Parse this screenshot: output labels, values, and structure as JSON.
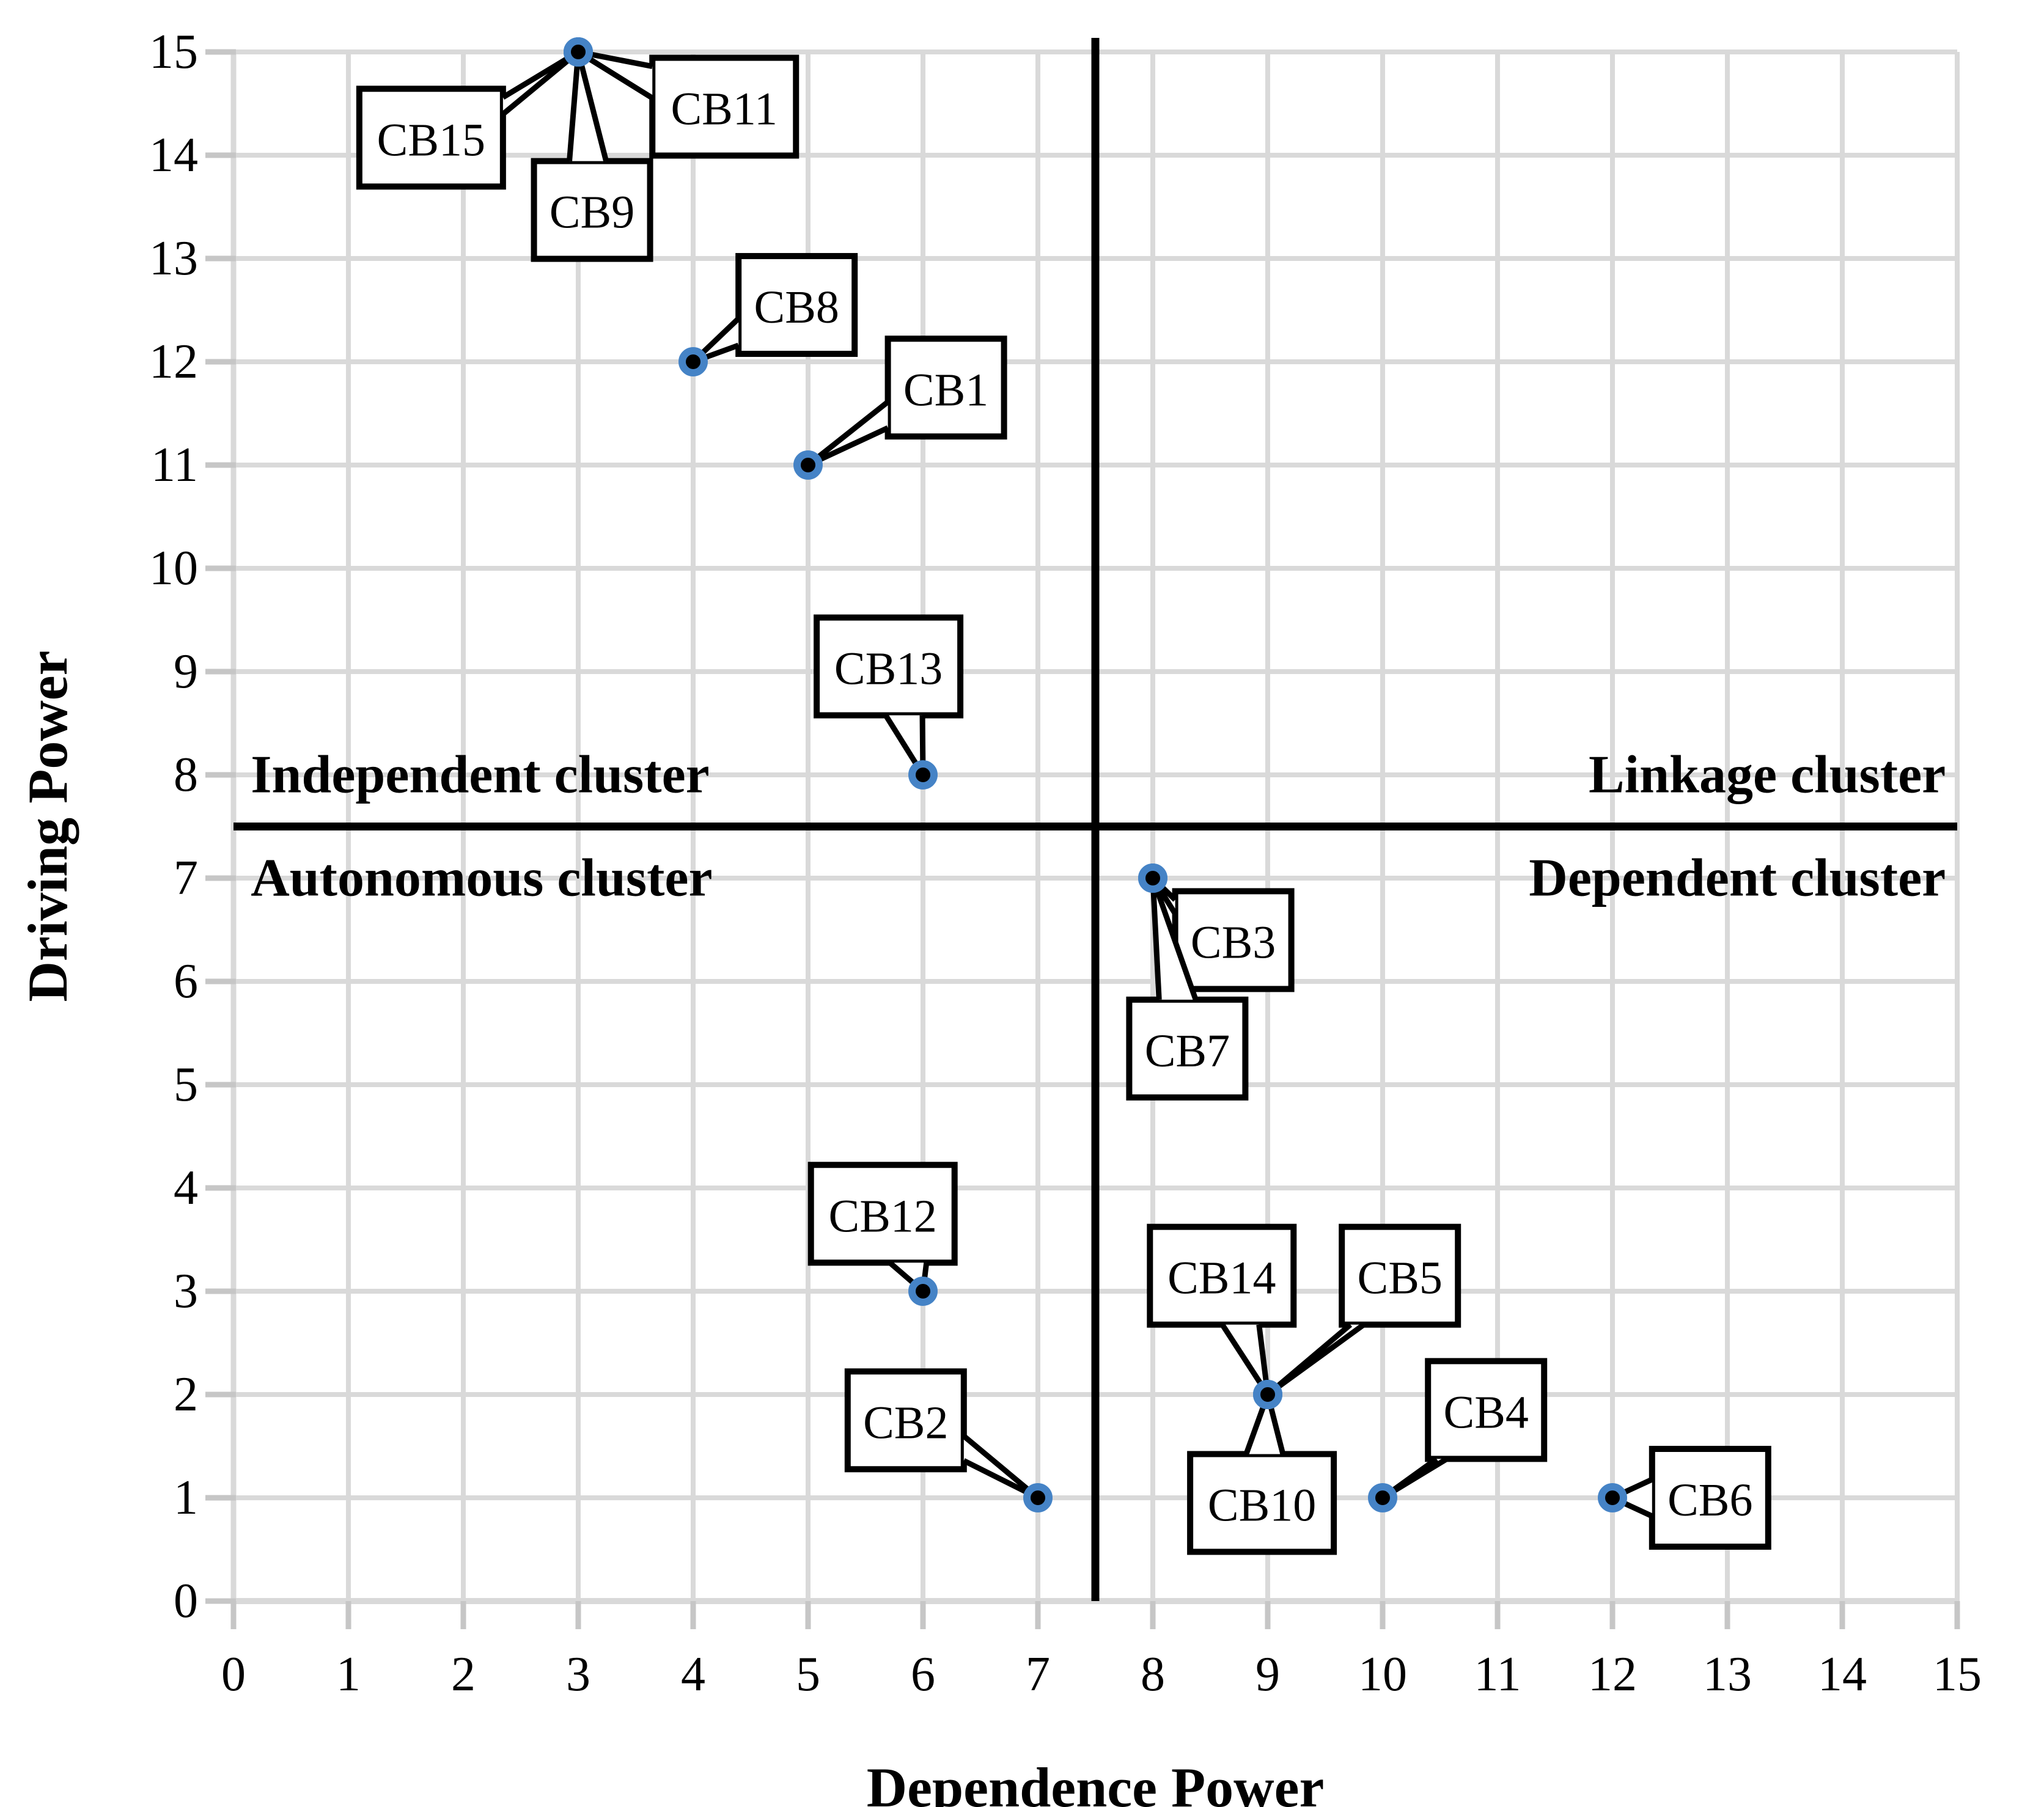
{
  "chart_data": {
    "type": "scatter",
    "title": "",
    "xlabel": "Dependence Power",
    "ylabel": "Driving Power",
    "xlim": [
      0,
      15
    ],
    "ylim": [
      0,
      15
    ],
    "x_ticks": [
      0,
      1,
      2,
      3,
      4,
      5,
      6,
      7,
      8,
      9,
      10,
      11,
      12,
      13,
      14,
      15
    ],
    "y_ticks": [
      0,
      1,
      2,
      3,
      4,
      5,
      6,
      7,
      8,
      9,
      10,
      11,
      12,
      13,
      14,
      15
    ],
    "grid": true,
    "legend": "none",
    "dividers": {
      "x": 7.5,
      "y": 7.5
    },
    "quadrant_labels": [
      {
        "id": "independent",
        "text": "Independent cluster",
        "x": 0.15,
        "y": 8,
        "align": "left"
      },
      {
        "id": "linkage",
        "text": "Linkage cluster",
        "x": 14.9,
        "y": 8,
        "align": "right"
      },
      {
        "id": "autonomous",
        "text": "Autonomous cluster",
        "x": 0.15,
        "y": 7,
        "align": "left"
      },
      {
        "id": "dependent",
        "text": "Dependent cluster",
        "x": 14.9,
        "y": 7,
        "align": "right"
      }
    ],
    "points": [
      {
        "label": "CB15",
        "x": 3,
        "y": 15,
        "callout": {
          "cx": 1.72,
          "cy": 14.17
        }
      },
      {
        "label": "CB9",
        "x": 3,
        "y": 15,
        "callout": {
          "cx": 3.12,
          "cy": 13.47
        }
      },
      {
        "label": "CB11",
        "x": 3,
        "y": 15,
        "callout": {
          "cx": 4.27,
          "cy": 14.47
        }
      },
      {
        "label": "CB8",
        "x": 4,
        "y": 12,
        "callout": {
          "cx": 4.9,
          "cy": 12.55
        }
      },
      {
        "label": "CB1",
        "x": 5,
        "y": 11,
        "callout": {
          "cx": 6.2,
          "cy": 11.75
        }
      },
      {
        "label": "CB13",
        "x": 6,
        "y": 8,
        "callout": {
          "cx": 5.7,
          "cy": 9.05
        }
      },
      {
        "label": "CB3",
        "x": 8,
        "y": 7,
        "callout": {
          "cx": 8.7,
          "cy": 6.4
        }
      },
      {
        "label": "CB7",
        "x": 8,
        "y": 7,
        "callout": {
          "cx": 8.3,
          "cy": 5.35
        }
      },
      {
        "label": "CB12",
        "x": 6,
        "y": 3,
        "callout": {
          "cx": 5.65,
          "cy": 3.75
        }
      },
      {
        "label": "CB2",
        "x": 7,
        "y": 1,
        "callout": {
          "cx": 5.85,
          "cy": 1.75
        }
      },
      {
        "label": "CB14",
        "x": 9,
        "y": 2,
        "callout": {
          "cx": 8.6,
          "cy": 3.15
        }
      },
      {
        "label": "CB5",
        "x": 9,
        "y": 2,
        "callout": {
          "cx": 10.15,
          "cy": 3.15
        }
      },
      {
        "label": "CB10",
        "x": 9,
        "y": 2,
        "callout": {
          "cx": 8.95,
          "cy": 0.95
        }
      },
      {
        "label": "CB4",
        "x": 10,
        "y": 1,
        "callout": {
          "cx": 10.9,
          "cy": 1.85
        }
      },
      {
        "label": "CB6",
        "x": 12,
        "y": 1,
        "callout": {
          "cx": 12.85,
          "cy": 1.0
        }
      }
    ],
    "colors": {
      "marker_fill": "#000000",
      "marker_ring": "#4583c6",
      "grid": "#d9d9d9",
      "axis": "#c6c6c6",
      "divider": "#000000",
      "callout_fill": "#ffffff",
      "callout_border": "#000000",
      "text": "#000000"
    }
  }
}
